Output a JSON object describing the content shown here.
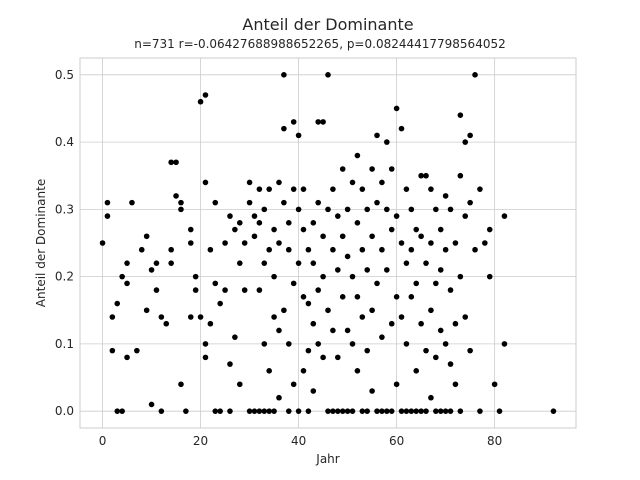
{
  "chart_data": {
    "type": "scatter",
    "title": "Anteil der Dominante",
    "subtitle": "n=731 r=-0.06427688988652265, p=0.08244417798564052",
    "xlabel": "Jahr",
    "ylabel": "Anteil der Dominante",
    "xlim": [
      -4.6,
      96.6
    ],
    "ylim": [
      -0.025,
      0.525
    ],
    "xticks": [
      0,
      20,
      40,
      60,
      80
    ],
    "yticks": [
      0.0,
      0.1,
      0.2,
      0.3,
      0.4,
      0.5
    ],
    "ytick_labels": [
      "0.0",
      "0.1",
      "0.2",
      "0.3",
      "0.4",
      "0.5"
    ],
    "grid": true,
    "marker_color": "#000000",
    "points": [
      [
        0,
        0.25
      ],
      [
        1,
        0.31
      ],
      [
        1,
        0.29
      ],
      [
        2,
        0.14
      ],
      [
        2,
        0.09
      ],
      [
        3,
        0.16
      ],
      [
        3,
        0.0
      ],
      [
        4,
        0.0
      ],
      [
        4,
        0.2
      ],
      [
        5,
        0.22
      ],
      [
        5,
        0.19
      ],
      [
        5,
        0.08
      ],
      [
        6,
        0.31
      ],
      [
        7,
        0.09
      ],
      [
        8,
        0.24
      ],
      [
        9,
        0.26
      ],
      [
        9,
        0.15
      ],
      [
        10,
        0.21
      ],
      [
        10,
        0.01
      ],
      [
        11,
        0.22
      ],
      [
        11,
        0.18
      ],
      [
        12,
        0.14
      ],
      [
        12,
        0.0
      ],
      [
        13,
        0.13
      ],
      [
        14,
        0.37
      ],
      [
        14,
        0.24
      ],
      [
        14,
        0.22
      ],
      [
        15,
        0.37
      ],
      [
        15,
        0.32
      ],
      [
        16,
        0.3
      ],
      [
        16,
        0.31
      ],
      [
        16,
        0.04
      ],
      [
        17,
        0.0
      ],
      [
        18,
        0.27
      ],
      [
        18,
        0.25
      ],
      [
        18,
        0.14
      ],
      [
        19,
        0.2
      ],
      [
        19,
        0.18
      ],
      [
        20,
        0.46
      ],
      [
        20,
        0.14
      ],
      [
        21,
        0.47
      ],
      [
        21,
        0.34
      ],
      [
        21,
        0.1
      ],
      [
        21,
        0.08
      ],
      [
        22,
        0.24
      ],
      [
        22,
        0.13
      ],
      [
        23,
        0.31
      ],
      [
        23,
        0.19
      ],
      [
        23,
        0.0
      ],
      [
        24,
        0.16
      ],
      [
        24,
        0.0
      ],
      [
        25,
        0.25
      ],
      [
        25,
        0.18
      ],
      [
        26,
        0.29
      ],
      [
        26,
        0.07
      ],
      [
        26,
        0.0
      ],
      [
        27,
        0.27
      ],
      [
        27,
        0.11
      ],
      [
        28,
        0.28
      ],
      [
        28,
        0.22
      ],
      [
        28,
        0.04
      ],
      [
        29,
        0.25
      ],
      [
        29,
        0.18
      ],
      [
        30,
        0.34
      ],
      [
        30,
        0.31
      ],
      [
        30,
        0.0
      ],
      [
        31,
        0.29
      ],
      [
        31,
        0.26
      ],
      [
        31,
        0.0
      ],
      [
        32,
        0.33
      ],
      [
        32,
        0.28
      ],
      [
        32,
        0.18
      ],
      [
        32,
        0.0
      ],
      [
        33,
        0.3
      ],
      [
        33,
        0.22
      ],
      [
        33,
        0.1
      ],
      [
        33,
        0.0
      ],
      [
        34,
        0.33
      ],
      [
        34,
        0.24
      ],
      [
        34,
        0.06
      ],
      [
        34,
        0.0
      ],
      [
        35,
        0.27
      ],
      [
        35,
        0.2
      ],
      [
        35,
        0.14
      ],
      [
        35,
        0.0
      ],
      [
        36,
        0.34
      ],
      [
        36,
        0.25
      ],
      [
        36,
        0.12
      ],
      [
        36,
        0.02
      ],
      [
        37,
        0.5
      ],
      [
        37,
        0.42
      ],
      [
        37,
        0.31
      ],
      [
        37,
        0.15
      ],
      [
        38,
        0.28
      ],
      [
        38,
        0.24
      ],
      [
        38,
        0.1
      ],
      [
        38,
        0.0
      ],
      [
        39,
        0.43
      ],
      [
        39,
        0.33
      ],
      [
        39,
        0.19
      ],
      [
        39,
        0.04
      ],
      [
        40,
        0.41
      ],
      [
        40,
        0.3
      ],
      [
        40,
        0.22
      ],
      [
        40,
        0.0
      ],
      [
        41,
        0.33
      ],
      [
        41,
        0.27
      ],
      [
        41,
        0.17
      ],
      [
        41,
        0.06
      ],
      [
        42,
        0.24
      ],
      [
        42,
        0.16
      ],
      [
        42,
        0.09
      ],
      [
        42,
        0.0
      ],
      [
        43,
        0.28
      ],
      [
        43,
        0.22
      ],
      [
        43,
        0.13
      ],
      [
        43,
        0.03
      ],
      [
        44,
        0.43
      ],
      [
        44,
        0.31
      ],
      [
        44,
        0.18
      ],
      [
        44,
        0.1
      ],
      [
        45,
        0.43
      ],
      [
        45,
        0.26
      ],
      [
        45,
        0.2
      ],
      [
        45,
        0.08
      ],
      [
        46,
        0.5
      ],
      [
        46,
        0.3
      ],
      [
        46,
        0.15
      ],
      [
        46,
        0.0
      ],
      [
        47,
        0.33
      ],
      [
        47,
        0.24
      ],
      [
        47,
        0.12
      ],
      [
        47,
        0.0
      ],
      [
        48,
        0.29
      ],
      [
        48,
        0.21
      ],
      [
        48,
        0.08
      ],
      [
        48,
        0.0
      ],
      [
        49,
        0.36
      ],
      [
        49,
        0.26
      ],
      [
        49,
        0.17
      ],
      [
        49,
        0.0
      ],
      [
        50,
        0.3
      ],
      [
        50,
        0.23
      ],
      [
        50,
        0.12
      ],
      [
        50,
        0.0
      ],
      [
        51,
        0.34
      ],
      [
        51,
        0.2
      ],
      [
        51,
        0.1
      ],
      [
        51,
        0.0
      ],
      [
        52,
        0.38
      ],
      [
        52,
        0.28
      ],
      [
        52,
        0.17
      ],
      [
        52,
        0.06
      ],
      [
        53,
        0.33
      ],
      [
        53,
        0.24
      ],
      [
        53,
        0.14
      ],
      [
        53,
        0.0
      ],
      [
        54,
        0.3
      ],
      [
        54,
        0.21
      ],
      [
        54,
        0.09
      ],
      [
        54,
        0.0
      ],
      [
        55,
        0.36
      ],
      [
        55,
        0.26
      ],
      [
        55,
        0.15
      ],
      [
        55,
        0.03
      ],
      [
        56,
        0.41
      ],
      [
        56,
        0.31
      ],
      [
        56,
        0.19
      ],
      [
        56,
        0.0
      ],
      [
        57,
        0.34
      ],
      [
        57,
        0.24
      ],
      [
        57,
        0.11
      ],
      [
        57,
        0.0
      ],
      [
        58,
        0.4
      ],
      [
        58,
        0.3
      ],
      [
        58,
        0.21
      ],
      [
        58,
        0.0
      ],
      [
        59,
        0.36
      ],
      [
        59,
        0.27
      ],
      [
        59,
        0.13
      ],
      [
        59,
        0.0
      ],
      [
        60,
        0.45
      ],
      [
        60,
        0.29
      ],
      [
        60,
        0.17
      ],
      [
        60,
        0.04
      ],
      [
        61,
        0.42
      ],
      [
        61,
        0.25
      ],
      [
        61,
        0.14
      ],
      [
        61,
        0.0
      ],
      [
        62,
        0.33
      ],
      [
        62,
        0.22
      ],
      [
        62,
        0.1
      ],
      [
        62,
        0.0
      ],
      [
        63,
        0.3
      ],
      [
        63,
        0.24
      ],
      [
        63,
        0.17
      ],
      [
        63,
        0.0
      ],
      [
        64,
        0.27
      ],
      [
        64,
        0.19
      ],
      [
        64,
        0.06
      ],
      [
        64,
        0.0
      ],
      [
        65,
        0.35
      ],
      [
        65,
        0.26
      ],
      [
        65,
        0.13
      ],
      [
        65,
        0.0
      ],
      [
        66,
        0.35
      ],
      [
        66,
        0.22
      ],
      [
        66,
        0.09
      ],
      [
        66,
        0.0
      ],
      [
        67,
        0.33
      ],
      [
        67,
        0.25
      ],
      [
        67,
        0.15
      ],
      [
        67,
        0.02
      ],
      [
        68,
        0.3
      ],
      [
        68,
        0.19
      ],
      [
        68,
        0.08
      ],
      [
        68,
        0.0
      ],
      [
        69,
        0.27
      ],
      [
        69,
        0.21
      ],
      [
        69,
        0.12
      ],
      [
        69,
        0.0
      ],
      [
        70,
        0.32
      ],
      [
        70,
        0.24
      ],
      [
        70,
        0.1
      ],
      [
        70,
        0.0
      ],
      [
        71,
        0.3
      ],
      [
        71,
        0.18
      ],
      [
        71,
        0.07
      ],
      [
        71,
        0.0
      ],
      [
        72,
        0.25
      ],
      [
        72,
        0.13
      ],
      [
        72,
        0.04
      ],
      [
        73,
        0.44
      ],
      [
        73,
        0.35
      ],
      [
        73,
        0.2
      ],
      [
        73,
        0.0
      ],
      [
        74,
        0.4
      ],
      [
        74,
        0.29
      ],
      [
        74,
        0.14
      ],
      [
        75,
        0.41
      ],
      [
        75,
        0.31
      ],
      [
        75,
        0.09
      ],
      [
        76,
        0.5
      ],
      [
        76,
        0.24
      ],
      [
        77,
        0.33
      ],
      [
        77,
        0.0
      ],
      [
        78,
        0.25
      ],
      [
        79,
        0.27
      ],
      [
        79,
        0.2
      ],
      [
        80,
        0.04
      ],
      [
        81,
        0.0
      ],
      [
        82,
        0.29
      ],
      [
        82,
        0.1
      ],
      [
        92,
        0.0
      ]
    ]
  }
}
